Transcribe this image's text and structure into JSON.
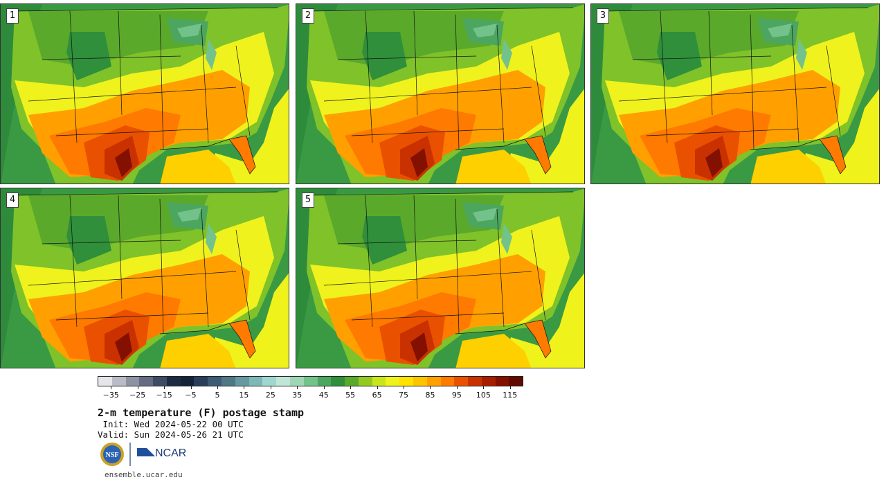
{
  "panels": [
    {
      "label": "1"
    },
    {
      "label": "2"
    },
    {
      "label": "3"
    },
    {
      "label": "4"
    },
    {
      "label": "5"
    }
  ],
  "colorbar": {
    "colors": [
      "#e6e6ea",
      "#b9bcc6",
      "#8e93a4",
      "#646b82",
      "#3f4a65",
      "#1c2a44",
      "#152237",
      "#2a3e5c",
      "#3d5b74",
      "#4f7786",
      "#6598a0",
      "#7db7b6",
      "#9fd7d0",
      "#bfe6d6",
      "#9fd6b3",
      "#73c28c",
      "#4ca65f",
      "#2f8f3a",
      "#5aa92b",
      "#93c920",
      "#c9e61a",
      "#eff21c",
      "#ffe200",
      "#ffc400",
      "#ffa000",
      "#ff7a00",
      "#e95100",
      "#c93100",
      "#a51e00",
      "#831000",
      "#5f0b00"
    ],
    "tick_values": [
      -35,
      -25,
      -15,
      -5,
      5,
      15,
      25,
      35,
      45,
      55,
      65,
      75,
      85,
      95,
      105,
      115
    ],
    "tick_labels": [
      "−35",
      "−25",
      "−15",
      "−5",
      "5",
      "15",
      "25",
      "35",
      "45",
      "55",
      "65",
      "75",
      "85",
      "95",
      "105",
      "115"
    ],
    "min": -40,
    "max": 120
  },
  "title": "2-m temperature (F) postage stamp",
  "init": " Init: Wed 2024-05-22 00 UTC",
  "valid": "Valid: Sun 2024-05-26 21 UTC",
  "logos": {
    "nsf": "NSF",
    "ncar": "NCAR"
  },
  "site": "ensemble.ucar.edu"
}
